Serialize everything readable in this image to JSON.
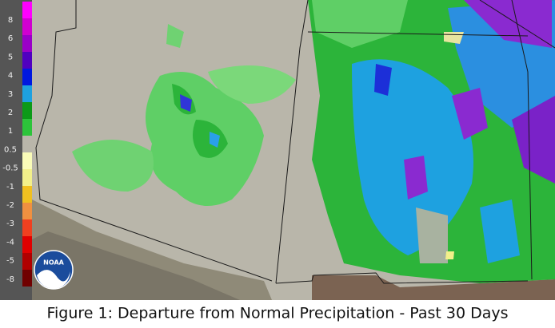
{
  "legend": {
    "labels": [
      "8",
      "6",
      "5",
      "4",
      "3",
      "2",
      "1",
      "0.5",
      "-0.5",
      "-1",
      "-2",
      "-3",
      "-4",
      "-5",
      "-8"
    ]
  },
  "logo": "NOAA",
  "caption": "Figure 1: Departure from Normal Precipitation - Past 30 Days"
}
